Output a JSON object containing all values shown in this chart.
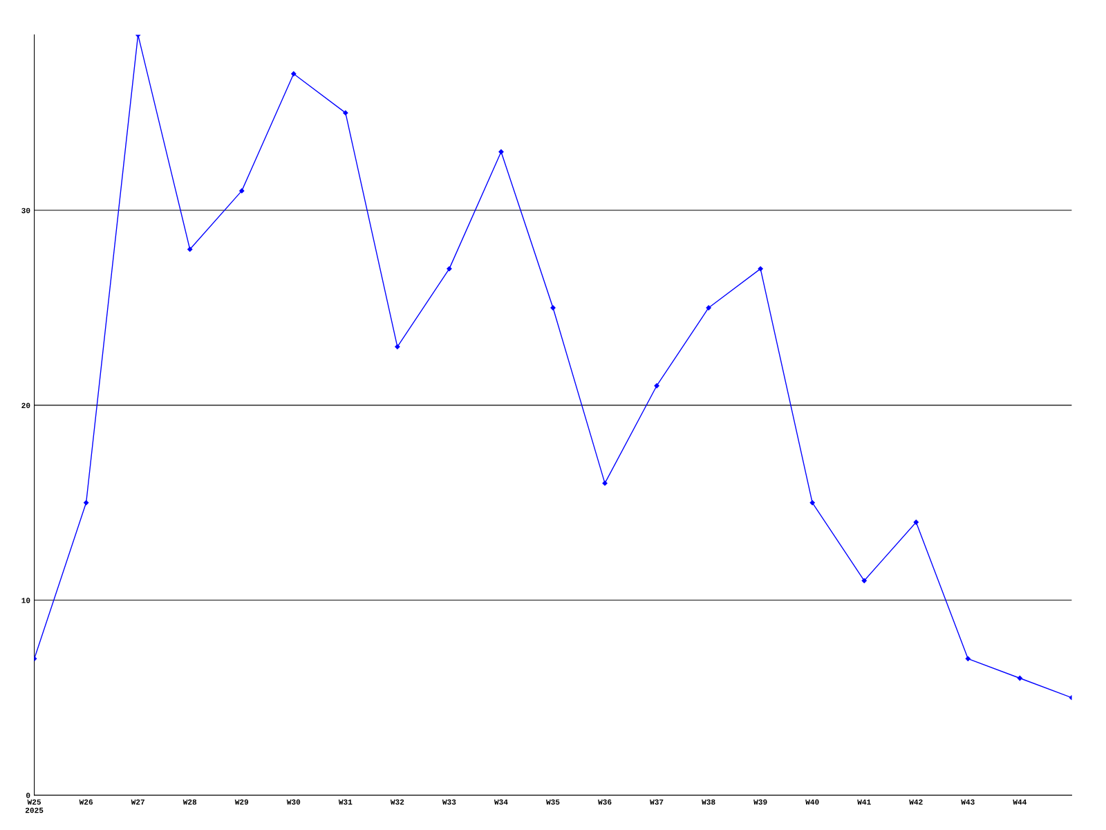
{
  "chart_data": {
    "type": "line",
    "categories": [
      "W25\n2025",
      "W26",
      "W27",
      "W28",
      "W29",
      "W30",
      "W31",
      "W32",
      "W33",
      "W34",
      "W35",
      "W36",
      "W37",
      "W38",
      "W39",
      "W40",
      "W41",
      "W42",
      "W43",
      "W44",
      null
    ],
    "series": [
      {
        "color": "#0000ff",
        "values": [
          7,
          15,
          39,
          28,
          31,
          37,
          35,
          23,
          27,
          33,
          25,
          16,
          21,
          25,
          27,
          15,
          11,
          14,
          7,
          6,
          5
        ]
      }
    ],
    "ylim": [
      0,
      39
    ],
    "yticks": [
      0,
      10,
      20,
      30
    ],
    "grid": "y",
    "marker": "diamond",
    "line_style": "solid"
  }
}
